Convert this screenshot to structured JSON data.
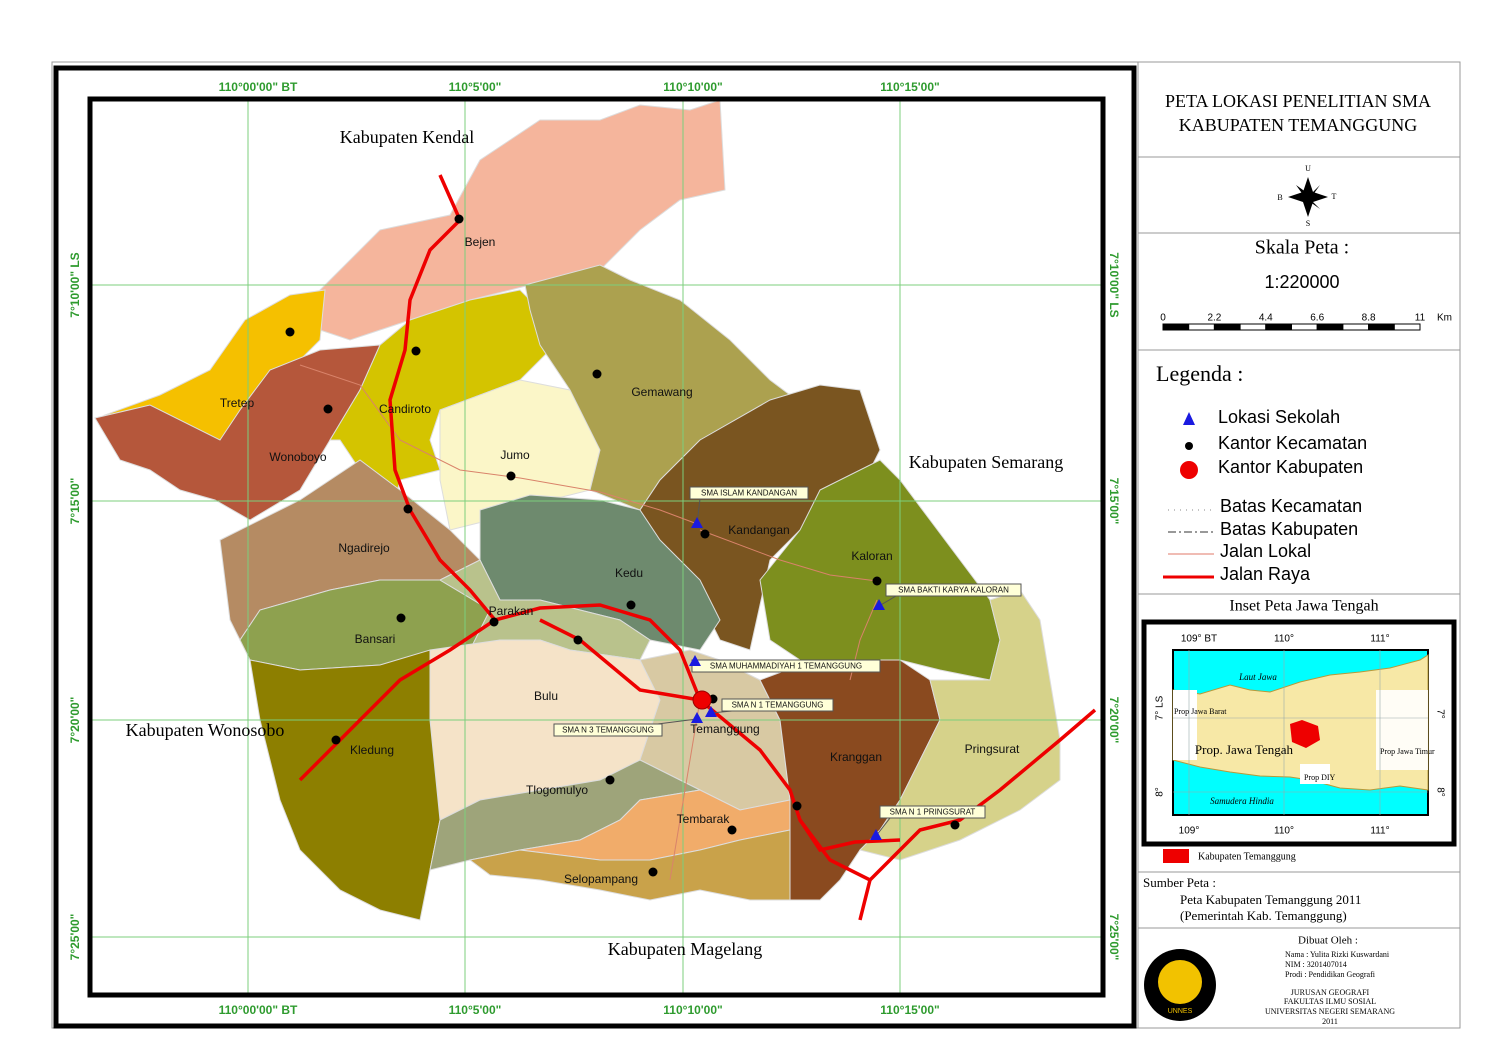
{
  "map": {
    "grid_labels": {
      "top": [
        "110°00'00\" BT",
        "110°5'00\"",
        "110°10'00\"",
        "110°15'00\""
      ],
      "bottom": [
        "110°00'00\" BT",
        "110°5'00\"",
        "110°10'00\"",
        "110°15'00\""
      ],
      "left": [
        "7°10'00\" LS",
        "7°15'00\"",
        "7°20'00\"",
        "7°25'00\""
      ],
      "right": [
        "7°10'00\" LS",
        "7°15'00\"",
        "7°20'00\"",
        "7°25'00\""
      ]
    },
    "neighbors": [
      "Kabupaten Kendal",
      "Kabupaten Semarang",
      "Kabupaten Wonosobo",
      "Kabupaten Magelang"
    ],
    "districts": [
      "Bejen",
      "Tretep",
      "Wonoboyo",
      "Candiroto",
      "Jumo",
      "Gemawang",
      "Kandangan",
      "Kaloran",
      "Kedu",
      "Ngadirejo",
      "Bansari",
      "Parakan",
      "Bulu",
      "Temanggung",
      "Kranggan",
      "Pringsurat",
      "Kledung",
      "Tlogomulyo",
      "Tembarak",
      "Selopampang"
    ],
    "schools": [
      "SMA ISLAM KANDANGAN",
      "SMA BAKTI KARYA KALORAN",
      "SMA  MUHAMMADIYAH 1 TEMANGGUNG",
      "SMA N 1 TEMANGGUNG",
      "SMA N 3 TEMANGGUNG",
      "SMA N 1 PRINGSURAT"
    ]
  },
  "sidebar": {
    "title": [
      "PETA LOKASI PENELITIAN SMA",
      "KABUPATEN TEMANGGUNG"
    ],
    "compass": {
      "north": "U",
      "west": "B",
      "east": "T",
      "south": "S"
    },
    "scale_title": "Skala Peta :",
    "scale": "1:220000",
    "scale_ticks": [
      "0",
      "2.2",
      "4.4",
      "6.6",
      "8.8",
      "11"
    ],
    "scale_unit": "Km",
    "legend_title": "Legenda :",
    "legend": [
      "Lokasi Sekolah",
      "Kantor Kecamatan",
      "Kantor Kabupaten",
      "Batas Kecamatan",
      "Batas Kabupaten",
      "Jalan Lokal",
      "Jalan Raya"
    ],
    "inset": {
      "title": "Inset Peta Jawa Tengah",
      "top_labels": [
        "109° BT",
        "110°",
        "111°"
      ],
      "bottom_labels": [
        "109°",
        "110°",
        "111°"
      ],
      "left_labels": [
        "7° LS",
        "8°"
      ],
      "right_labels": [
        "7°",
        "8°"
      ],
      "places": [
        "Laut Jawa",
        "Prop Jawa Barat",
        "Prop. Jawa Tengah",
        "Prop Jawa Timur",
        "Prop DIY",
        "Samudera Hindia"
      ],
      "legend": "Kabupaten Temanggung"
    },
    "source": {
      "title": "Sumber Peta :",
      "lines": [
        "Peta Kabupaten Temanggung 2011",
        "(Pemerintah Kab. Temanggung)"
      ]
    },
    "author": {
      "title": "Dibuat Oleh :",
      "lines": [
        "Nama  : Yulita Rizki Kuswardani",
        "NIM   : 3201407014",
        "Prodi  : Pendidikan Geografi"
      ],
      "institution": [
        "JURUSAN GEOGRAFI",
        "FAKULTAS ILMU SOSIAL",
        "UNIVERSITAS NEGERI SEMARANG",
        "2011"
      ],
      "logo": "UNNES"
    }
  }
}
